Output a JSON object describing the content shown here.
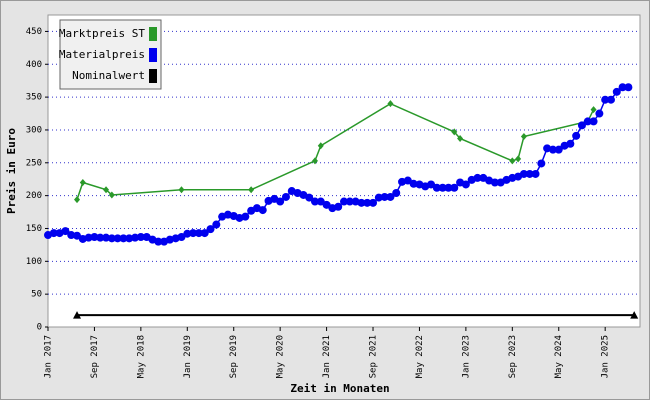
{
  "chart_data": {
    "type": "line",
    "x_label": "Zeit in Monaten",
    "y_label": "Preis in Euro",
    "xlim": [
      "2017-01",
      "2025-07"
    ],
    "ylim": [
      0,
      475
    ],
    "yticks": [
      0,
      50,
      100,
      150,
      200,
      250,
      300,
      350,
      400,
      450
    ],
    "xticks": [
      {
        "value": "2017-01",
        "label": "Jan 2017"
      },
      {
        "value": "2017-09",
        "label": "Sep 2017"
      },
      {
        "value": "2018-05",
        "label": "May 2018"
      },
      {
        "value": "2019-01",
        "label": "Jan 2019"
      },
      {
        "value": "2019-09",
        "label": "Sep 2019"
      },
      {
        "value": "2020-05",
        "label": "May 2020"
      },
      {
        "value": "2021-01",
        "label": "Jan 2021"
      },
      {
        "value": "2021-09",
        "label": "Sep 2021"
      },
      {
        "value": "2022-05",
        "label": "May 2022"
      },
      {
        "value": "2023-01",
        "label": "Jan 2023"
      },
      {
        "value": "2023-09",
        "label": "Sep 2023"
      },
      {
        "value": "2024-05",
        "label": "May 2024"
      },
      {
        "value": "2025-01",
        "label": "Jan 2025"
      }
    ],
    "grid": true,
    "legend": "upper left",
    "series": [
      {
        "name": "Marktpreis ST",
        "color": "#2a992a",
        "marker": "diamond",
        "x": [
          "2017-06",
          "2017-07",
          "2017-11",
          "2017-12",
          "2018-12",
          "2019-12",
          "2020-11",
          "2020-12",
          "2021-12",
          "2022-11",
          "2022-12",
          "2023-09",
          "2023-10",
          "2023-11",
          "2024-10",
          "2024-11"
        ],
        "values": [
          194,
          220,
          209,
          201,
          209,
          209,
          253,
          276,
          340,
          297,
          287,
          253,
          256,
          290,
          313,
          331
        ]
      },
      {
        "name": "Materialpreis",
        "color": "#0000ee",
        "marker": "circle",
        "x": [
          "2017-01",
          "2017-02",
          "2017-03",
          "2017-04",
          "2017-05",
          "2017-06",
          "2017-07",
          "2017-08",
          "2017-09",
          "2017-10",
          "2017-11",
          "2017-12",
          "2018-01",
          "2018-02",
          "2018-03",
          "2018-04",
          "2018-05",
          "2018-06",
          "2018-07",
          "2018-08",
          "2018-09",
          "2018-10",
          "2018-11",
          "2018-12",
          "2019-01",
          "2019-02",
          "2019-03",
          "2019-04",
          "2019-05",
          "2019-06",
          "2019-07",
          "2019-08",
          "2019-09",
          "2019-10",
          "2019-11",
          "2019-12",
          "2020-01",
          "2020-02",
          "2020-03",
          "2020-04",
          "2020-05",
          "2020-06",
          "2020-07",
          "2020-08",
          "2020-09",
          "2020-10",
          "2020-11",
          "2020-12",
          "2021-01",
          "2021-02",
          "2021-03",
          "2021-04",
          "2021-05",
          "2021-06",
          "2021-07",
          "2021-08",
          "2021-09",
          "2021-10",
          "2021-11",
          "2021-12",
          "2022-01",
          "2022-02",
          "2022-03",
          "2022-04",
          "2022-05",
          "2022-06",
          "2022-07",
          "2022-08",
          "2022-09",
          "2022-10",
          "2022-11",
          "2022-12",
          "2023-01",
          "2023-02",
          "2023-03",
          "2023-04",
          "2023-05",
          "2023-06",
          "2023-07",
          "2023-08",
          "2023-09",
          "2023-10",
          "2023-11",
          "2023-12",
          "2024-01",
          "2024-02",
          "2024-03",
          "2024-04",
          "2024-05",
          "2024-06",
          "2024-07",
          "2024-08",
          "2024-09",
          "2024-10",
          "2024-11",
          "2024-12",
          "2025-01",
          "2025-02",
          "2025-03",
          "2025-04",
          "2025-05"
        ],
        "values": [
          140,
          143,
          143,
          146,
          140,
          139,
          134,
          136,
          137,
          136,
          136,
          135,
          135,
          135,
          135,
          136,
          137,
          137,
          133,
          130,
          130,
          133,
          135,
          137,
          142,
          143,
          143,
          143,
          149,
          156,
          168,
          171,
          169,
          166,
          168,
          177,
          181,
          178,
          192,
          195,
          191,
          198,
          207,
          204,
          201,
          197,
          191,
          191,
          186,
          181,
          183,
          191,
          191,
          191,
          189,
          189,
          189,
          197,
          198,
          198,
          204,
          221,
          223,
          218,
          217,
          214,
          217,
          212,
          212,
          212,
          212,
          220,
          217,
          224,
          227,
          227,
          223,
          220,
          220,
          224,
          227,
          229,
          233,
          233,
          233,
          249,
          272,
          270,
          270,
          276,
          279,
          291,
          307,
          313,
          313,
          325,
          346,
          346,
          358,
          365,
          365
        ]
      },
      {
        "name": "Nominalwert",
        "color": "#000000",
        "marker": "triangle",
        "x": [
          "2017-06",
          "2025-06"
        ],
        "values": [
          18,
          18
        ]
      }
    ]
  }
}
